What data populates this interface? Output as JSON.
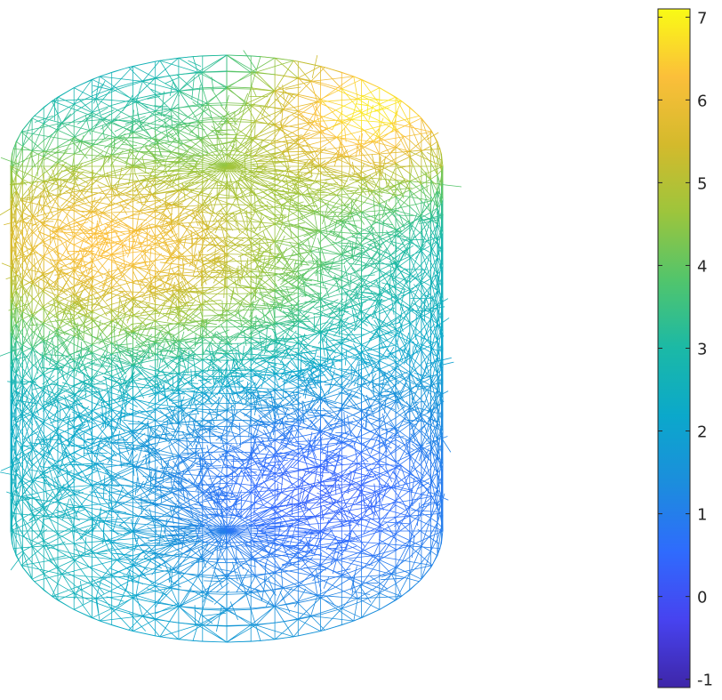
{
  "chart_data": {
    "type": "heatmap",
    "description_kind": "3d-wireframe-mesh",
    "title": "",
    "xlabel": "",
    "ylabel": "",
    "colormap": "parula",
    "clim": [
      -1.1,
      7.1
    ],
    "colorbar": {
      "placement": "right",
      "ticks": [
        -1,
        0,
        1,
        2,
        3,
        4,
        5,
        6,
        7
      ],
      "tick_labels": [
        "-1",
        "0",
        "1",
        "2",
        "3",
        "4",
        "5",
        "6",
        "7"
      ]
    },
    "axes_visible": false,
    "grid": false,
    "surface": "cylinder",
    "value_field": {
      "max_region": "upper-right of top rim",
      "high_band": "upper-left side",
      "min_region": "lower-right of front face",
      "range": [
        0,
        7
      ]
    },
    "colormap_stops": [
      "#3e26a8",
      "#4743f0",
      "#2f6bfd",
      "#1c8ddd",
      "#0ba8cb",
      "#1bb9a6",
      "#51c56c",
      "#9dc53c",
      "#d4ba2c",
      "#fbbf3a",
      "#f9fb15"
    ]
  }
}
